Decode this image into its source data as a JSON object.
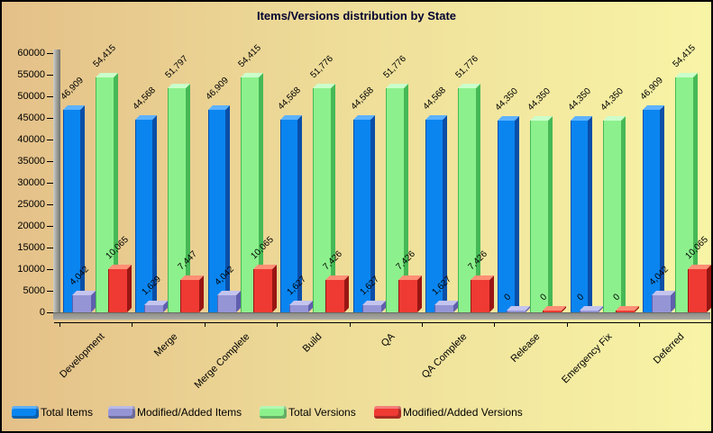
{
  "chart_data": {
    "type": "bar",
    "title": "Items/Versions distribution by State",
    "categories": [
      "Development",
      "Merge",
      "Merge Complete",
      "Build",
      "QA",
      "QA Complete",
      "Release",
      "Emergency Fix",
      "Deferred"
    ],
    "series": [
      {
        "name": "Total Items",
        "color": "#0a85f0",
        "top_color": "#5db2ff",
        "side_color": "#0a4fa8",
        "values": [
          46909,
          44568,
          46909,
          44568,
          44568,
          44568,
          44350,
          44350,
          46909
        ]
      },
      {
        "name": "Modified/Added Items",
        "color": "#9595d6",
        "top_color": "#c4c4ee",
        "side_color": "#5f5fae",
        "values": [
          4042,
          1629,
          4042,
          1627,
          1627,
          1627,
          0,
          0,
          4042
        ]
      },
      {
        "name": "Total Versions",
        "color": "#8cf18c",
        "top_color": "#cbffcb",
        "side_color": "#46b956",
        "values": [
          54415,
          51797,
          54415,
          51776,
          51776,
          51776,
          44350,
          44350,
          54415
        ]
      },
      {
        "name": "Modified/Added Versions",
        "color": "#ee3a33",
        "top_color": "#ff8f75",
        "side_color": "#991613",
        "values": [
          10065,
          7447,
          10065,
          7426,
          7426,
          7426,
          0,
          0,
          10065
        ]
      }
    ],
    "ylim": [
      0,
      60000
    ],
    "ytick_step": 5000,
    "grid": false,
    "legend_position": "bottom",
    "background_colors": {
      "left": "#e4c088",
      "right": "#f8f4a6"
    },
    "wall_color": "#9a9a94"
  }
}
